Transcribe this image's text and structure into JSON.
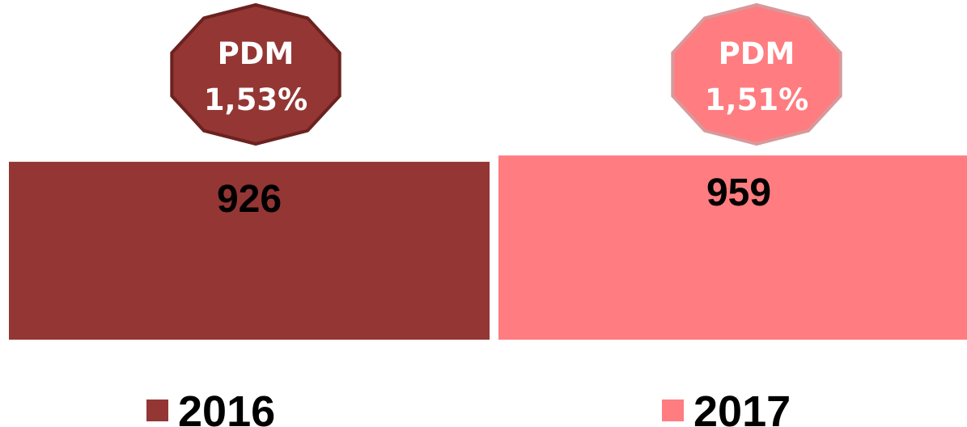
{
  "chart_data": {
    "type": "bar",
    "categories": [
      "2016",
      "2017"
    ],
    "values": [
      926,
      959
    ],
    "colors": [
      "#943634",
      "#FF7C80"
    ],
    "badge_outline_colors": [
      "#6b2220",
      "#d9989a"
    ],
    "badges": [
      {
        "label": "PDM",
        "value": "1,53%"
      },
      {
        "label": "PDM",
        "value": "1,51%"
      }
    ],
    "ylim": [
      0,
      1000
    ],
    "legend_position": "bottom",
    "grid": false
  }
}
